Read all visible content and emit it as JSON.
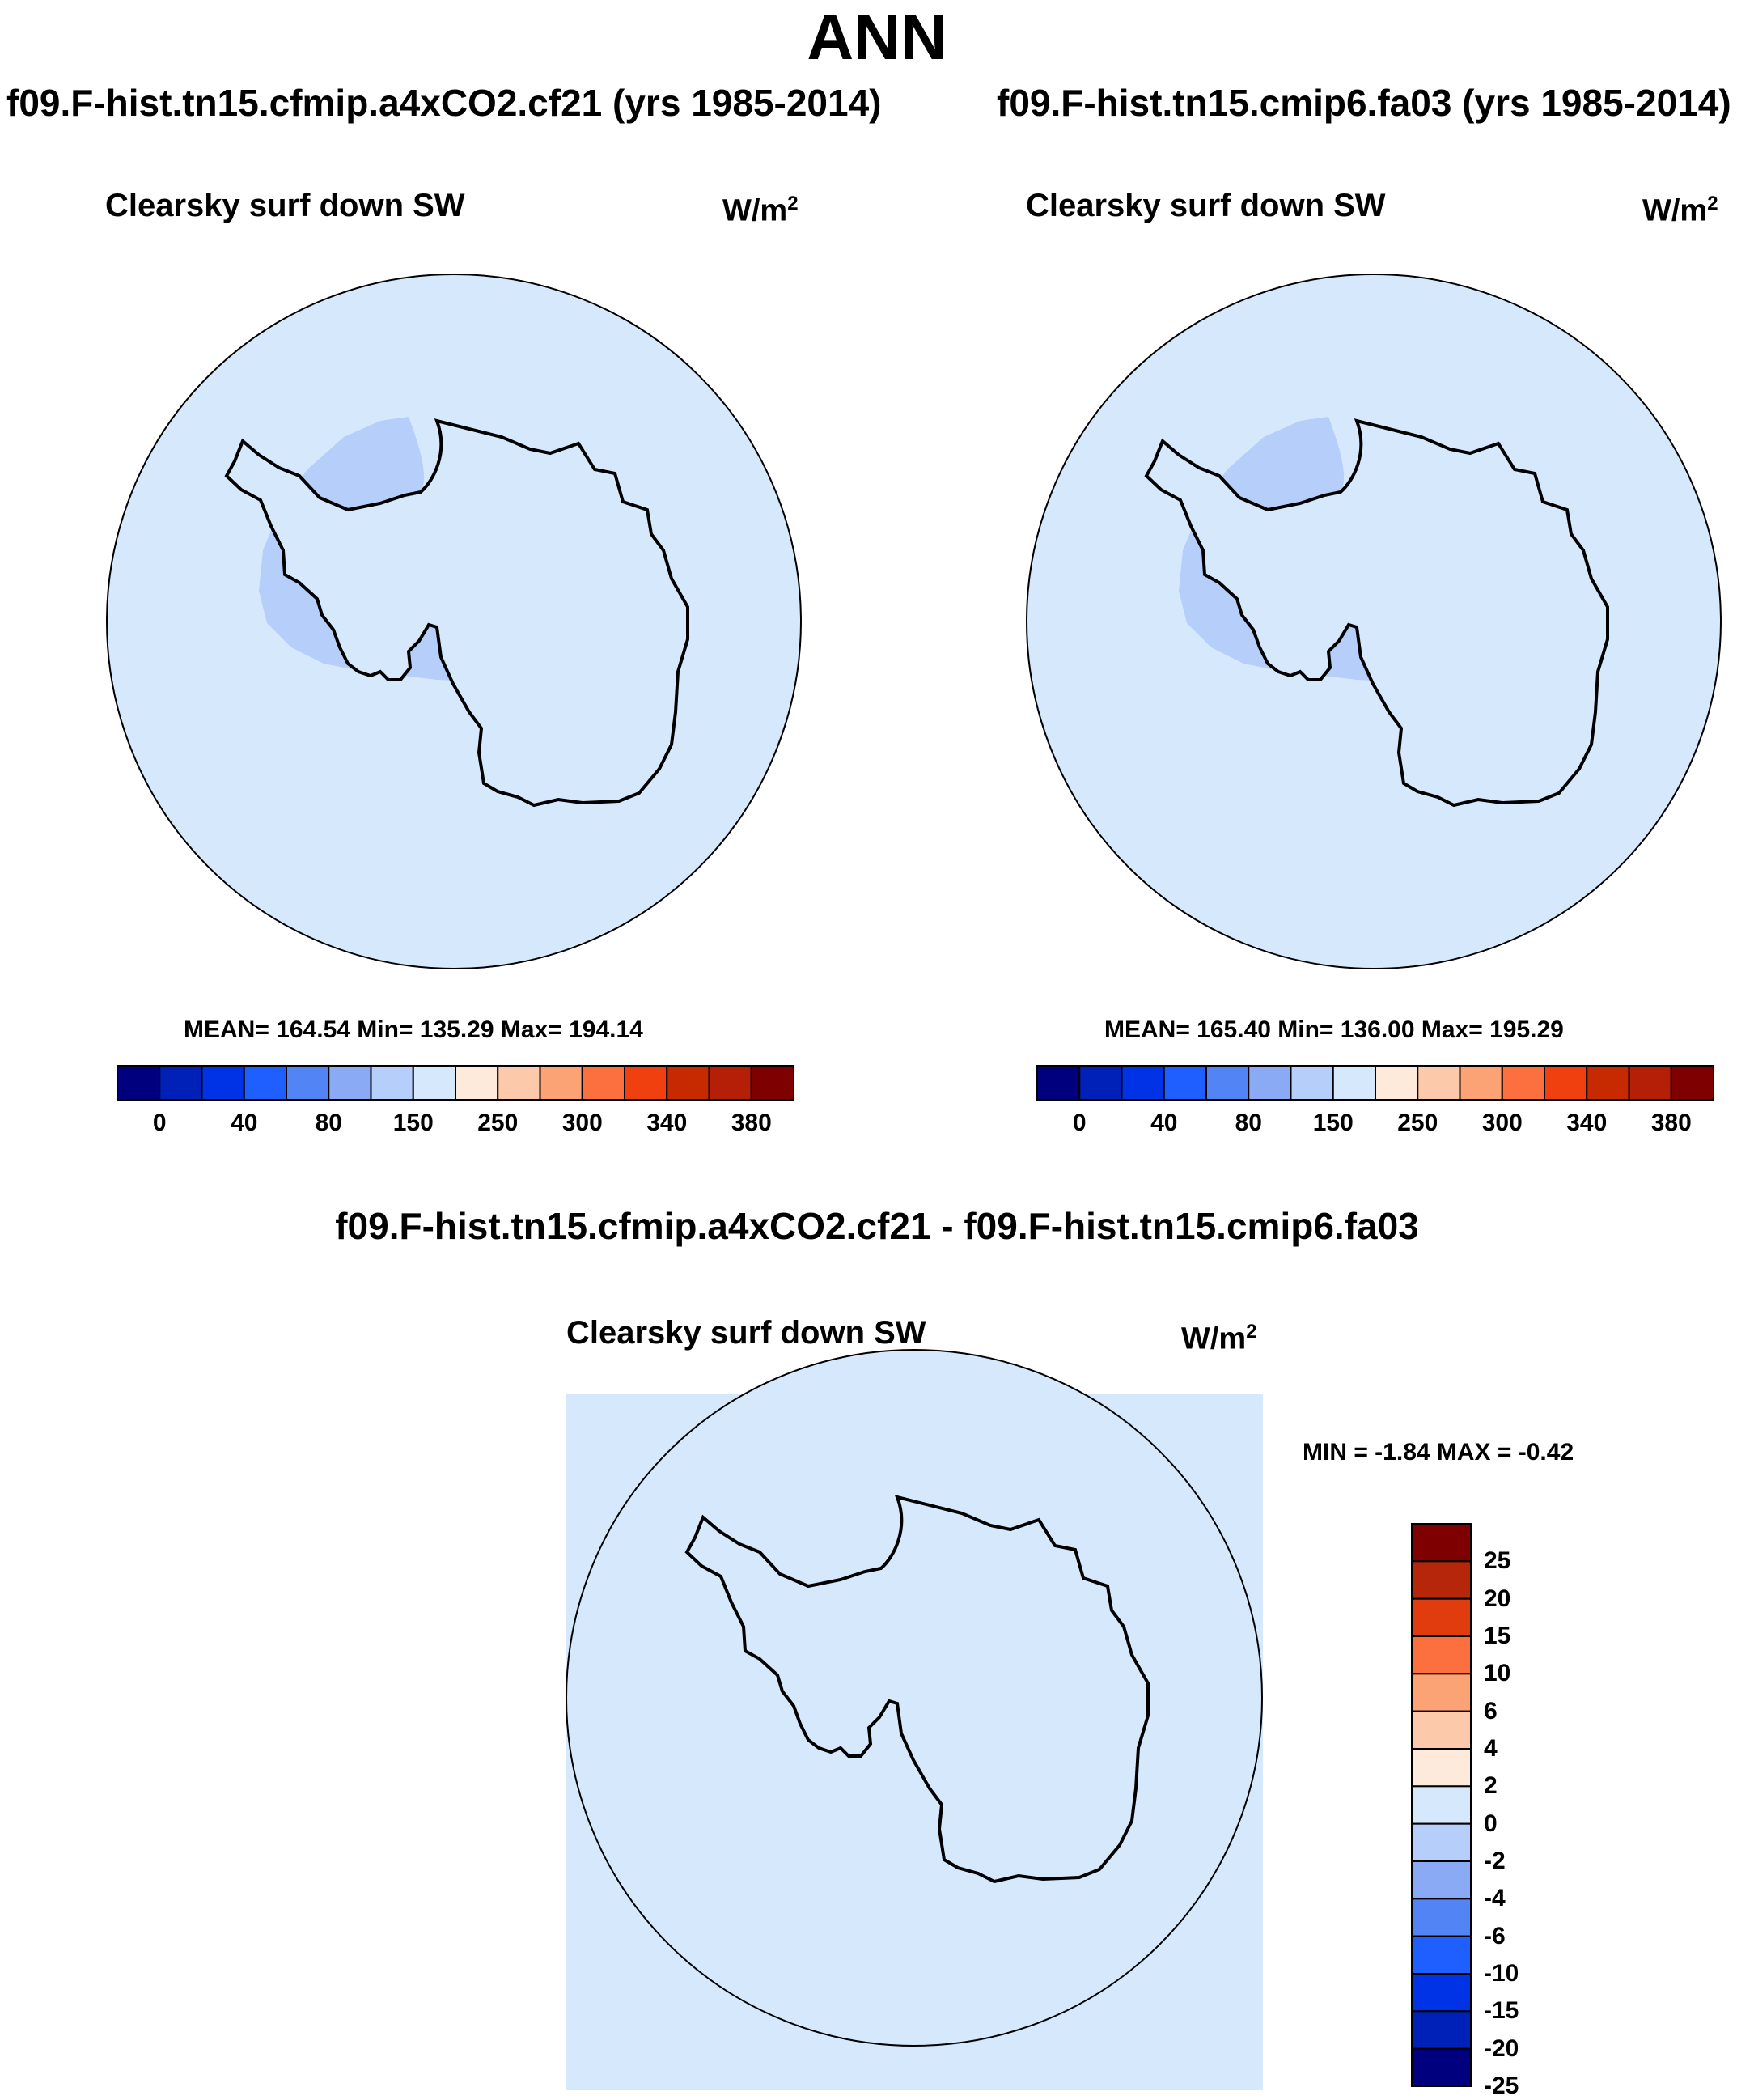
{
  "title": "ANN",
  "colors": {
    "land_fill": "#ffffff",
    "ocean_fill": "#d6e8fc",
    "interior_fill": "#b5cefa",
    "diff_fill": "#d6e8fc",
    "coast": "#000000"
  },
  "panels": [
    {
      "case": "f09.F-hist.tn15.cfmip.a4xCO2.cf21 (yrs 1985-2014)",
      "variable": "Clearsky surf down SW",
      "units": "W/m",
      "units_exp": "2",
      "stats": "MEAN= 164.54  Min= 135.29  Max= 194.14"
    },
    {
      "case": "f09.F-hist.tn15.cmip6.fa03 (yrs 1985-2014)",
      "variable": "Clearsky surf down SW",
      "units": "W/m",
      "units_exp": "2",
      "stats": "MEAN= 165.40  Min= 136.00  Max= 195.29"
    }
  ],
  "main_colorbar": {
    "colors": [
      "#00007f",
      "#0021b8",
      "#0033e6",
      "#1f5fff",
      "#5284f5",
      "#8aaaf5",
      "#b5cefa",
      "#d6e8fc",
      "#fdeadb",
      "#fcc9ab",
      "#fca375",
      "#fc7040",
      "#f0400f",
      "#c72a00",
      "#b51f07",
      "#7f0000"
    ],
    "labels": [
      "0",
      "40",
      "80",
      "150",
      "250",
      "300",
      "340",
      "380"
    ]
  },
  "diff_panel": {
    "title": "f09.F-hist.tn15.cfmip.a4xCO2.cf21 - f09.F-hist.tn15.cmip6.fa03",
    "variable": "Clearsky surf down SW",
    "units": "W/m",
    "units_exp": "2",
    "minmax": "MIN =  -1.84 MAX =  -0.42"
  },
  "diff_colorbar": {
    "colors_top_to_bottom": [
      "#7f0000",
      "#b5260a",
      "#e03c0d",
      "#fc7040",
      "#fca375",
      "#fcc9ab",
      "#fdeadb",
      "#d6e8fc",
      "#b5cefa",
      "#8aaaf5",
      "#5284f5",
      "#1f5fff",
      "#0033e6",
      "#0021b8",
      "#00007f"
    ],
    "labels": [
      "25",
      "20",
      "15",
      "10",
      "6",
      "4",
      "2",
      "0",
      "-2",
      "-4",
      "-6",
      "-10",
      "-15",
      "-20",
      "-25"
    ]
  }
}
